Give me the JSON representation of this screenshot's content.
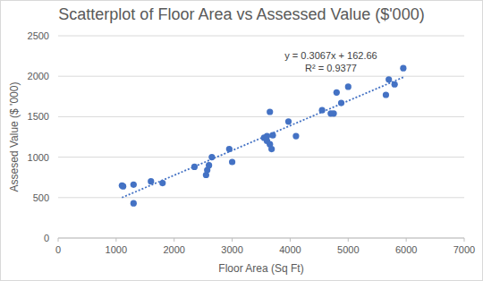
{
  "chart_data": {
    "type": "scatter",
    "title": "Scatterplot of Floor Area vs Assessed Value ($'000)",
    "x_label": "Floor Area (Sq Ft)",
    "y_label": "Assesed Value ($ '000)",
    "annotations": [
      "y = 0.3067x + 162.66",
      "R² = 0.9377"
    ],
    "xlim": [
      0,
      7000
    ],
    "xticks": [
      0,
      1000,
      2000,
      3000,
      4000,
      5000,
      6000,
      7000
    ],
    "ylim": [
      0,
      2500
    ],
    "yticks": [
      0,
      500,
      1000,
      1500,
      2000,
      2500
    ],
    "grid": true,
    "series": [
      {
        "type": "scatter",
        "marker": "circle",
        "color": "#4472c4",
        "x": [
          1100,
          1120,
          1300,
          1300,
          1600,
          1800,
          2350,
          2550,
          2570,
          2600,
          2650,
          2950,
          3000,
          3550,
          3600,
          3650,
          3600,
          3650,
          3680,
          3700,
          3970,
          4100,
          4550,
          4700,
          4750,
          4800,
          4880,
          5000,
          5650,
          5700,
          5800,
          5950
        ],
        "values": [
          650,
          640,
          660,
          430,
          700,
          680,
          880,
          780,
          840,
          900,
          1000,
          1100,
          940,
          1240,
          1200,
          1160,
          1260,
          1560,
          1100,
          1270,
          1440,
          1260,
          1580,
          1540,
          1540,
          1800,
          1670,
          1870,
          1770,
          1960,
          1900,
          2100
        ]
      },
      {
        "type": "line",
        "line_style": "dotted",
        "color": "#4472c4",
        "x": [
          1100,
          5950
        ],
        "values": [
          500.03,
          1987.53
        ]
      }
    ]
  }
}
